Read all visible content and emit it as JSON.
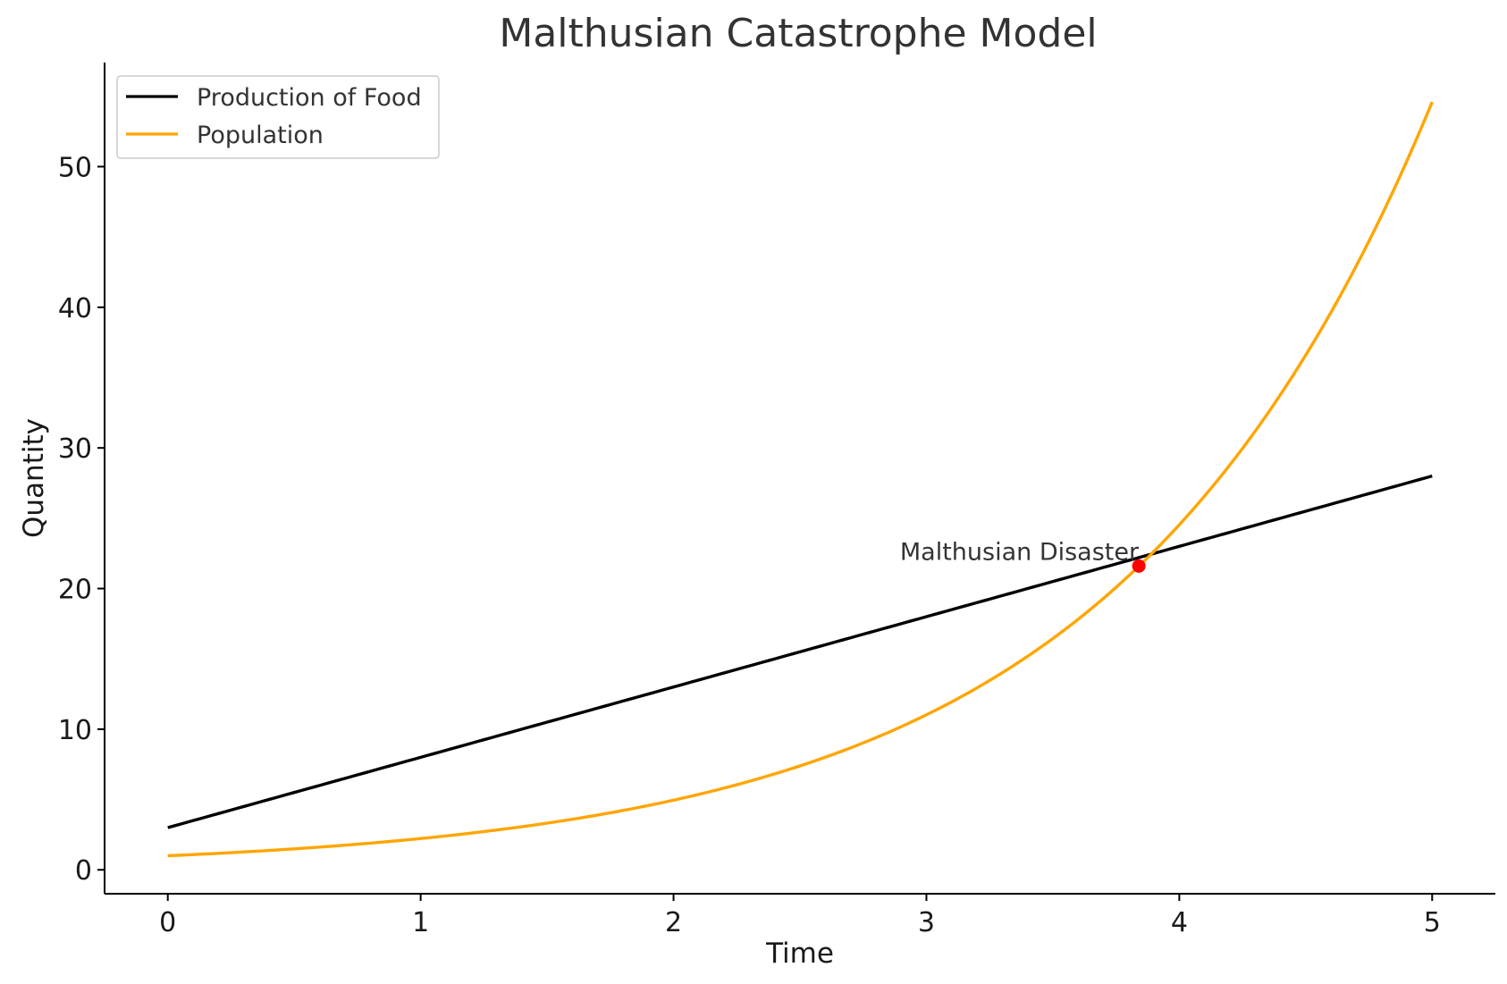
{
  "chart_data": {
    "type": "line",
    "title": "Malthusian Catastrophe Model",
    "xlabel": "Time",
    "ylabel": "Quantity",
    "xlim": [
      -0.25,
      5.25
    ],
    "ylim": [
      -1.7,
      57.4
    ],
    "x_ticks": [
      0,
      1,
      2,
      3,
      4,
      5
    ],
    "y_ticks": [
      0,
      10,
      20,
      30,
      40,
      50
    ],
    "grid": false,
    "legend_position": "top-left",
    "series": [
      {
        "name": "Production of Food",
        "color": "#000000",
        "model": "linear",
        "x": [
          0,
          1,
          2,
          3,
          4,
          5
        ],
        "y": [
          3,
          8,
          13,
          18,
          23,
          28
        ]
      },
      {
        "name": "Population",
        "color": "#FFA500",
        "model": "exponential",
        "x": [
          0,
          1,
          2,
          3,
          3.84,
          4,
          5
        ],
        "y": [
          1,
          2.2,
          4.9,
          11,
          21.6,
          24.5,
          54.6
        ]
      }
    ],
    "annotations": [
      {
        "text": "Malthusian Disaster",
        "x": 3.84,
        "y": 21.6,
        "marker_color": "#FF0000"
      }
    ]
  }
}
